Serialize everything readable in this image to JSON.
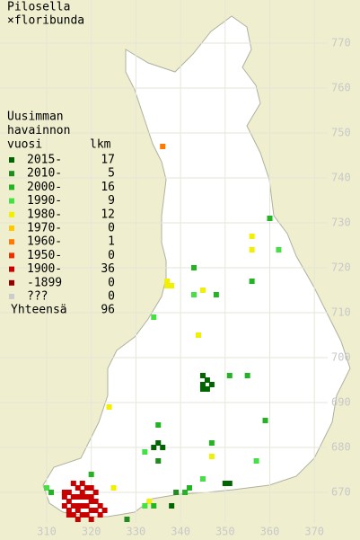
{
  "header": {
    "title": "Pilosella",
    "subtitle": "×floribunda"
  },
  "legend": {
    "heading": [
      "Uusimman",
      "havainnon",
      "vuosi"
    ],
    "count_heading": "lkm",
    "items": [
      {
        "label": "2015-",
        "count": 17,
        "color": "#006400"
      },
      {
        "label": "2010-",
        "count": 5,
        "color": "#1e8c1e"
      },
      {
        "label": "2000-",
        "count": 16,
        "color": "#22b422"
      },
      {
        "label": "1990-",
        "count": 9,
        "color": "#44e044"
      },
      {
        "label": "1980-",
        "count": 12,
        "color": "#f0f000"
      },
      {
        "label": "1970-",
        "count": 0,
        "color": "#ffc800"
      },
      {
        "label": "1960-",
        "count": 1,
        "color": "#ff7800"
      },
      {
        "label": "1950-",
        "count": 0,
        "color": "#e83000"
      },
      {
        "label": "1900-",
        "count": 36,
        "color": "#c80000"
      },
      {
        "label": "-1899",
        "count": 0,
        "color": "#900000"
      },
      {
        "label": "???",
        "count": 0,
        "color": "#cccccc"
      }
    ],
    "total": {
      "label": "Yhteensä",
      "count": 96
    }
  },
  "map": {
    "x_labels": [
      310,
      320,
      330,
      340,
      350,
      360,
      370
    ],
    "y_labels": [
      770,
      760,
      750,
      740,
      730,
      720,
      710,
      700,
      690,
      680,
      670
    ],
    "squares": [
      {
        "x": 336,
        "y": 747,
        "class": 6
      },
      {
        "x": 360,
        "y": 731,
        "class": 2
      },
      {
        "x": 362,
        "y": 724,
        "class": 3
      },
      {
        "x": 356,
        "y": 727,
        "class": 4
      },
      {
        "x": 356,
        "y": 724,
        "class": 4
      },
      {
        "x": 343,
        "y": 720,
        "class": 2
      },
      {
        "x": 337,
        "y": 717,
        "class": 4
      },
      {
        "x": 337,
        "y": 716,
        "class": 4
      },
      {
        "x": 338,
        "y": 716,
        "class": 4
      },
      {
        "x": 343,
        "y": 714,
        "class": 3
      },
      {
        "x": 345,
        "y": 715,
        "class": 4
      },
      {
        "x": 348,
        "y": 714,
        "class": 2
      },
      {
        "x": 356,
        "y": 717,
        "class": 2
      },
      {
        "x": 334,
        "y": 709,
        "class": 3
      },
      {
        "x": 344,
        "y": 705,
        "class": 4
      },
      {
        "x": 345,
        "y": 696,
        "class": 0
      },
      {
        "x": 345,
        "y": 694,
        "class": 0
      },
      {
        "x": 346,
        "y": 695,
        "class": 0
      },
      {
        "x": 347,
        "y": 694,
        "class": 0
      },
      {
        "x": 346,
        "y": 693,
        "class": 0
      },
      {
        "x": 345,
        "y": 693,
        "class": 0
      },
      {
        "x": 351,
        "y": 696,
        "class": 2
      },
      {
        "x": 355,
        "y": 696,
        "class": 2
      },
      {
        "x": 324,
        "y": 689,
        "class": 4
      },
      {
        "x": 359,
        "y": 686,
        "class": 2
      },
      {
        "x": 335,
        "y": 685,
        "class": 2
      },
      {
        "x": 335,
        "y": 681,
        "class": 0
      },
      {
        "x": 334,
        "y": 680,
        "class": 0
      },
      {
        "x": 336,
        "y": 680,
        "class": 0
      },
      {
        "x": 332,
        "y": 679,
        "class": 3
      },
      {
        "x": 335,
        "y": 677,
        "class": 1
      },
      {
        "x": 347,
        "y": 681,
        "class": 2
      },
      {
        "x": 347,
        "y": 678,
        "class": 4
      },
      {
        "x": 357,
        "y": 677,
        "class": 3
      },
      {
        "x": 350,
        "y": 672,
        "class": 0
      },
      {
        "x": 351,
        "y": 672,
        "class": 0
      },
      {
        "x": 342,
        "y": 671,
        "class": 2
      },
      {
        "x": 341,
        "y": 670,
        "class": 2
      },
      {
        "x": 339,
        "y": 670,
        "class": 1
      },
      {
        "x": 333,
        "y": 668,
        "class": 4
      },
      {
        "x": 334,
        "y": 667,
        "class": 2
      },
      {
        "x": 332,
        "y": 667,
        "class": 3
      },
      {
        "x": 338,
        "y": 667,
        "class": 0
      },
      {
        "x": 345,
        "y": 673,
        "class": 3
      },
      {
        "x": 328,
        "y": 664,
        "class": 1
      },
      {
        "x": 325,
        "y": 671,
        "class": 4
      },
      {
        "x": 320,
        "y": 674,
        "class": 2
      },
      {
        "x": 310,
        "y": 671,
        "class": 3
      },
      {
        "x": 311,
        "y": 670,
        "class": 2
      },
      {
        "x": 316,
        "y": 672,
        "class": 8
      },
      {
        "x": 317,
        "y": 671,
        "class": 8
      },
      {
        "x": 318,
        "y": 672,
        "class": 8
      },
      {
        "x": 319,
        "y": 671,
        "class": 8
      },
      {
        "x": 320,
        "y": 671,
        "class": 8
      },
      {
        "x": 314,
        "y": 670,
        "class": 8
      },
      {
        "x": 315,
        "y": 670,
        "class": 8
      },
      {
        "x": 316,
        "y": 669,
        "class": 8
      },
      {
        "x": 317,
        "y": 669,
        "class": 8
      },
      {
        "x": 318,
        "y": 670,
        "class": 8
      },
      {
        "x": 319,
        "y": 669,
        "class": 8
      },
      {
        "x": 320,
        "y": 669,
        "class": 8
      },
      {
        "x": 321,
        "y": 668,
        "class": 8
      },
      {
        "x": 315,
        "y": 668,
        "class": 8
      },
      {
        "x": 316,
        "y": 667,
        "class": 8
      },
      {
        "x": 317,
        "y": 667,
        "class": 8
      },
      {
        "x": 318,
        "y": 667,
        "class": 8
      },
      {
        "x": 319,
        "y": 667,
        "class": 8
      },
      {
        "x": 320,
        "y": 666,
        "class": 8
      },
      {
        "x": 321,
        "y": 666,
        "class": 8
      },
      {
        "x": 322,
        "y": 667,
        "class": 8
      },
      {
        "x": 314,
        "y": 667,
        "class": 8
      },
      {
        "x": 315,
        "y": 665,
        "class": 8
      },
      {
        "x": 316,
        "y": 665,
        "class": 8
      },
      {
        "x": 317,
        "y": 664,
        "class": 8
      },
      {
        "x": 319,
        "y": 665,
        "class": 8
      },
      {
        "x": 320,
        "y": 664,
        "class": 8
      },
      {
        "x": 322,
        "y": 665,
        "class": 8
      },
      {
        "x": 323,
        "y": 666,
        "class": 8
      },
      {
        "x": 318,
        "y": 669,
        "class": 8
      },
      {
        "x": 314,
        "y": 669,
        "class": 8
      },
      {
        "x": 317,
        "y": 666,
        "class": 8
      },
      {
        "x": 318,
        "y": 665,
        "class": 8
      },
      {
        "x": 321,
        "y": 670,
        "class": 8
      },
      {
        "x": 315,
        "y": 666,
        "class": 8
      },
      {
        "x": 320,
        "y": 668,
        "class": 8
      }
    ]
  }
}
